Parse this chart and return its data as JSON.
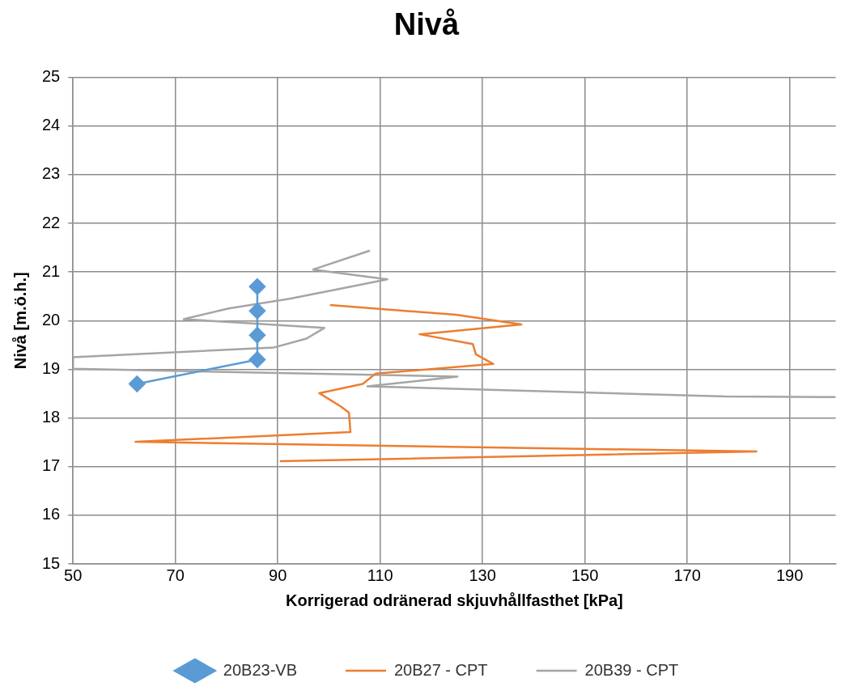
{
  "chart_data": {
    "type": "line",
    "title": "Nivå",
    "xlabel": "Korrigerad odränerad skjuvhållfasthet [kPa]",
    "ylabel": "Nivå [m.ö.h.]",
    "xlim": [
      50,
      199
    ],
    "xticks": [
      50,
      70,
      90,
      110,
      130,
      150,
      170,
      190
    ],
    "ylim": [
      15,
      25
    ],
    "yticks": [
      15,
      16,
      17,
      18,
      19,
      20,
      21,
      22,
      23,
      24,
      25
    ],
    "grid": true,
    "legend": "bottom",
    "series": [
      {
        "name": "20B23-VB",
        "color": "#5b9bd5",
        "marker": "diamond",
        "x": [
          62.5,
          86,
          86,
          86,
          86
        ],
        "values": [
          18.7,
          19.2,
          19.7,
          20.2,
          20.7
        ]
      },
      {
        "name": "20B27 - CPT",
        "color": "#ed7d31",
        "marker": "none",
        "x": [
          100.2,
          124.8,
          137.6,
          117.7,
          128.1,
          128.7,
          132.1,
          109.1,
          106.6,
          98.1,
          102.4,
          103.9,
          104.2,
          62.2,
          183.5,
          90.4
        ],
        "values": [
          20.32,
          20.12,
          19.92,
          19.72,
          19.52,
          19.31,
          19.11,
          18.91,
          18.7,
          18.51,
          18.23,
          18.11,
          17.71,
          17.51,
          17.31,
          17.11
        ]
      },
      {
        "name": "20B39 - CPT",
        "color": "#a5a5a5",
        "marker": "none",
        "x": [
          108,
          96.9,
          111.4,
          101.9,
          92.3,
          80.4,
          71.6,
          99.1,
          95.6,
          89.3,
          50,
          50,
          125.1,
          107.5,
          177.4,
          199
        ],
        "values": [
          21.44,
          21.05,
          20.85,
          20.65,
          20.45,
          20.25,
          20.03,
          19.85,
          19.63,
          19.45,
          19.25,
          19.01,
          18.85,
          18.65,
          18.44,
          18.43
        ]
      }
    ]
  }
}
